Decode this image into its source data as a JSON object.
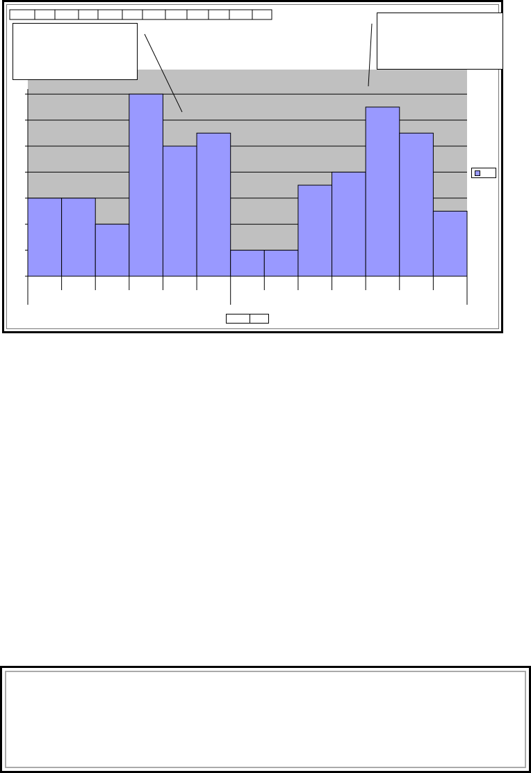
{
  "chart_data": {
    "type": "bar",
    "title": "",
    "xlabel": "",
    "ylabel": "",
    "categories": [
      "",
      "",
      "",
      "",
      "",
      "",
      "",
      "",
      "",
      "",
      "",
      "",
      ""
    ],
    "values": [
      3,
      3,
      2,
      7,
      5,
      5.5,
      1,
      1,
      3.5,
      4,
      6.5,
      5.5,
      2.5
    ],
    "ylim": [
      0,
      7
    ],
    "grid": true,
    "legend": "right",
    "bar_color": "#9999ff",
    "plot_background": "#c0c0c0"
  }
}
